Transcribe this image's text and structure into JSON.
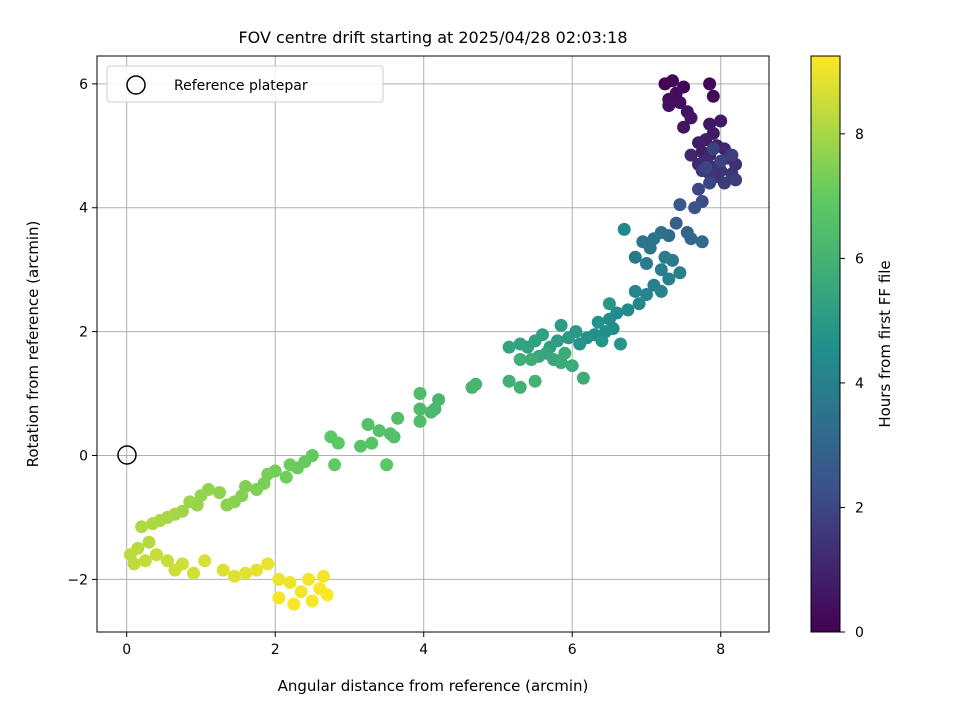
{
  "chart_data": {
    "type": "scatter",
    "title": "FOV centre drift starting at 2025/04/28 02:03:18",
    "xlabel": "Angular distance from reference (arcmin)",
    "ylabel": "Rotation from reference (arcmin)",
    "xlim": [
      -0.4,
      8.65
    ],
    "ylim": [
      -2.85,
      6.45
    ],
    "xticks": [
      0,
      2,
      4,
      6,
      8
    ],
    "xtick_labels": [
      "0",
      "2",
      "4",
      "6",
      "8"
    ],
    "yticks": [
      -2,
      0,
      2,
      4,
      6
    ],
    "ytick_labels": [
      "−2",
      "0",
      "2",
      "4",
      "6"
    ],
    "grid": true,
    "legend": {
      "position": "top-left",
      "entries": [
        "Reference platepar"
      ]
    },
    "reference_point": {
      "label": "Reference platepar",
      "x": 0,
      "y": 0
    },
    "colorbar": {
      "label": "Hours from first FF file",
      "colormap": "viridis",
      "range": [
        0,
        9.25
      ],
      "ticks": [
        0,
        2,
        4,
        6,
        8
      ],
      "tick_labels": [
        "0",
        "2",
        "4",
        "6",
        "8"
      ]
    },
    "points": [
      [
        7.25,
        6.0,
        0.05
      ],
      [
        7.35,
        6.05,
        0.1
      ],
      [
        7.5,
        5.95,
        0.15
      ],
      [
        7.85,
        6.0,
        0.2
      ],
      [
        7.9,
        5.8,
        0.25
      ],
      [
        7.3,
        5.75,
        0.3
      ],
      [
        7.4,
        5.85,
        0.35
      ],
      [
        7.45,
        5.7,
        0.4
      ],
      [
        7.3,
        5.65,
        0.45
      ],
      [
        7.55,
        5.55,
        0.5
      ],
      [
        7.6,
        5.45,
        0.55
      ],
      [
        7.5,
        5.3,
        0.6
      ],
      [
        7.85,
        5.35,
        0.65
      ],
      [
        8.0,
        5.4,
        0.7
      ],
      [
        7.9,
        5.2,
        0.75
      ],
      [
        7.7,
        5.05,
        0.8
      ],
      [
        7.8,
        5.1,
        0.85
      ],
      [
        7.75,
        4.9,
        0.9
      ],
      [
        7.95,
        5.0,
        0.95
      ],
      [
        8.05,
        4.95,
        1.0
      ],
      [
        7.85,
        4.85,
        1.05
      ],
      [
        7.6,
        4.85,
        1.1
      ],
      [
        7.7,
        4.7,
        1.15
      ],
      [
        7.8,
        4.75,
        1.2
      ],
      [
        7.9,
        4.65,
        1.25
      ],
      [
        8.1,
        4.8,
        1.3
      ],
      [
        8.2,
        4.7,
        1.35
      ],
      [
        8.0,
        4.6,
        1.4
      ],
      [
        7.95,
        4.5,
        1.45
      ],
      [
        8.15,
        4.55,
        1.5
      ],
      [
        7.85,
        4.55,
        1.55
      ],
      [
        7.75,
        4.6,
        1.6
      ],
      [
        8.05,
        4.4,
        1.65
      ],
      [
        8.2,
        4.45,
        1.7
      ],
      [
        8.15,
        4.85,
        1.75
      ],
      [
        7.9,
        4.95,
        1.8
      ],
      [
        8.0,
        4.75,
        1.85
      ],
      [
        7.8,
        4.65,
        1.9
      ],
      [
        7.85,
        4.4,
        1.95
      ],
      [
        7.7,
        4.3,
        2.0
      ],
      [
        7.75,
        4.1,
        2.2
      ],
      [
        7.65,
        4.0,
        2.4
      ],
      [
        7.45,
        4.05,
        2.6
      ],
      [
        7.4,
        3.75,
        2.8
      ],
      [
        7.55,
        3.6,
        3.0
      ],
      [
        7.6,
        3.5,
        3.1
      ],
      [
        7.75,
        3.45,
        3.2
      ],
      [
        7.3,
        3.55,
        3.3
      ],
      [
        7.2,
        3.6,
        3.4
      ],
      [
        7.1,
        3.5,
        3.5
      ],
      [
        6.95,
        3.45,
        3.6
      ],
      [
        7.05,
        3.35,
        3.65
      ],
      [
        6.85,
        3.2,
        3.7
      ],
      [
        7.0,
        3.1,
        3.75
      ],
      [
        7.25,
        3.2,
        3.8
      ],
      [
        7.35,
        3.15,
        3.85
      ],
      [
        7.2,
        3.0,
        3.9
      ],
      [
        7.45,
        2.95,
        3.95
      ],
      [
        7.3,
        2.85,
        4.0
      ],
      [
        7.1,
        2.75,
        4.05
      ],
      [
        7.0,
        2.6,
        4.1
      ],
      [
        7.2,
        2.65,
        4.15
      ],
      [
        6.85,
        2.65,
        4.2
      ],
      [
        6.9,
        2.45,
        4.25
      ],
      [
        6.7,
        3.65,
        4.3
      ],
      [
        6.75,
        2.35,
        4.35
      ],
      [
        6.6,
        2.3,
        4.4
      ],
      [
        6.5,
        2.2,
        4.45
      ],
      [
        6.55,
        2.05,
        4.5
      ],
      [
        6.45,
        2.0,
        4.55
      ],
      [
        6.3,
        1.95,
        4.6
      ],
      [
        6.35,
        2.15,
        4.65
      ],
      [
        6.2,
        1.9,
        4.7
      ],
      [
        6.1,
        1.8,
        4.75
      ],
      [
        6.4,
        1.85,
        4.8
      ],
      [
        6.65,
        1.8,
        4.85
      ],
      [
        6.5,
        2.45,
        4.9
      ],
      [
        6.05,
        2.0,
        4.95
      ],
      [
        5.95,
        1.9,
        5.0
      ],
      [
        5.85,
        2.1,
        5.05
      ],
      [
        5.8,
        1.85,
        5.1
      ],
      [
        5.7,
        1.75,
        5.15
      ],
      [
        5.6,
        1.95,
        5.2
      ],
      [
        5.5,
        1.85,
        5.25
      ],
      [
        5.4,
        1.75,
        5.3
      ],
      [
        5.3,
        1.8,
        5.35
      ],
      [
        5.15,
        1.75,
        5.4
      ],
      [
        5.65,
        1.65,
        5.45
      ],
      [
        5.55,
        1.6,
        5.5
      ],
      [
        5.75,
        1.55,
        5.55
      ],
      [
        5.85,
        1.5,
        5.6
      ],
      [
        6.0,
        1.45,
        5.65
      ],
      [
        5.9,
        1.65,
        5.7
      ],
      [
        6.15,
        1.25,
        5.75
      ],
      [
        5.45,
        1.55,
        5.8
      ],
      [
        5.3,
        1.55,
        5.85
      ],
      [
        5.15,
        1.2,
        5.9
      ],
      [
        5.3,
        1.1,
        5.95
      ],
      [
        5.5,
        1.2,
        6.0
      ],
      [
        4.7,
        1.15,
        6.05
      ],
      [
        4.65,
        1.1,
        6.1
      ],
      [
        4.2,
        0.9,
        6.15
      ],
      [
        4.15,
        0.75,
        6.2
      ],
      [
        4.1,
        0.7,
        6.25
      ],
      [
        3.95,
        0.75,
        6.3
      ],
      [
        3.95,
        1.0,
        6.35
      ],
      [
        3.95,
        0.55,
        6.4
      ],
      [
        3.65,
        0.6,
        6.45
      ],
      [
        3.6,
        0.3,
        6.5
      ],
      [
        3.55,
        0.35,
        6.55
      ],
      [
        3.4,
        0.4,
        6.6
      ],
      [
        3.25,
        0.5,
        6.65
      ],
      [
        3.15,
        0.15,
        6.7
      ],
      [
        3.3,
        0.2,
        6.75
      ],
      [
        3.5,
        -0.15,
        6.8
      ],
      [
        2.85,
        0.2,
        6.85
      ],
      [
        2.75,
        0.3,
        6.9
      ],
      [
        2.8,
        -0.15,
        6.95
      ],
      [
        2.5,
        0.0,
        7.0
      ],
      [
        2.4,
        -0.1,
        7.05
      ],
      [
        2.3,
        -0.2,
        7.1
      ],
      [
        2.2,
        -0.15,
        7.15
      ],
      [
        2.15,
        -0.35,
        7.2
      ],
      [
        2.0,
        -0.25,
        7.25
      ],
      [
        1.9,
        -0.3,
        7.3
      ],
      [
        1.85,
        -0.45,
        7.35
      ],
      [
        1.75,
        -0.55,
        7.4
      ],
      [
        1.6,
        -0.5,
        7.45
      ],
      [
        1.55,
        -0.65,
        7.5
      ],
      [
        1.45,
        -0.75,
        7.55
      ],
      [
        1.35,
        -0.8,
        7.6
      ],
      [
        1.25,
        -0.6,
        7.65
      ],
      [
        1.1,
        -0.55,
        7.7
      ],
      [
        1.0,
        -0.65,
        7.75
      ],
      [
        0.95,
        -0.8,
        7.8
      ],
      [
        0.85,
        -0.75,
        7.85
      ],
      [
        0.75,
        -0.9,
        7.9
      ],
      [
        0.65,
        -0.95,
        7.95
      ],
      [
        0.55,
        -1.0,
        8.0
      ],
      [
        0.45,
        -1.05,
        8.05
      ],
      [
        0.35,
        -1.1,
        8.1
      ],
      [
        0.2,
        -1.15,
        8.15
      ],
      [
        0.3,
        -1.4,
        8.2
      ],
      [
        0.15,
        -1.5,
        8.25
      ],
      [
        0.05,
        -1.6,
        8.3
      ],
      [
        0.1,
        -1.75,
        8.35
      ],
      [
        0.25,
        -1.7,
        8.4
      ],
      [
        0.4,
        -1.6,
        8.45
      ],
      [
        0.55,
        -1.7,
        8.5
      ],
      [
        0.65,
        -1.85,
        8.55
      ],
      [
        0.75,
        -1.75,
        8.6
      ],
      [
        0.9,
        -1.9,
        8.65
      ],
      [
        1.05,
        -1.7,
        8.7
      ],
      [
        1.3,
        -1.85,
        8.75
      ],
      [
        1.45,
        -1.95,
        8.8
      ],
      [
        1.6,
        -1.9,
        8.85
      ],
      [
        1.75,
        -1.85,
        8.9
      ],
      [
        1.9,
        -1.75,
        8.95
      ],
      [
        2.05,
        -2.0,
        9.0
      ],
      [
        2.2,
        -2.05,
        9.05
      ],
      [
        2.35,
        -2.2,
        9.1
      ],
      [
        2.5,
        -2.35,
        9.15
      ],
      [
        2.6,
        -2.15,
        9.2
      ],
      [
        2.7,
        -2.25,
        9.22
      ],
      [
        2.25,
        -2.4,
        9.18
      ],
      [
        2.05,
        -2.3,
        9.16
      ],
      [
        2.65,
        -1.95,
        9.12
      ],
      [
        2.45,
        -2.0,
        9.1
      ]
    ]
  }
}
